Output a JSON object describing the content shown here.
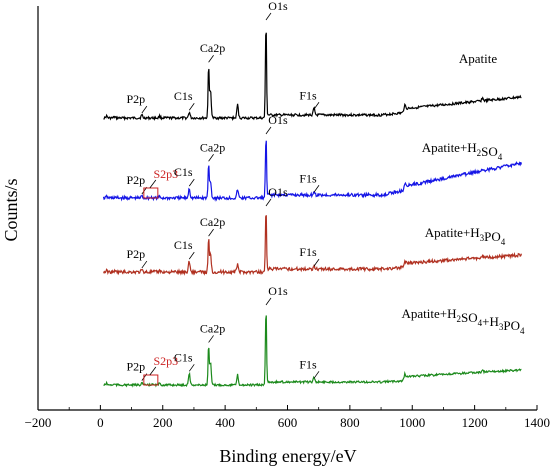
{
  "chart_data": {
    "type": "line",
    "xlabel": "Binding energy/eV",
    "ylabel": "Counts/s",
    "xlim": [
      -200,
      1400
    ],
    "x_ticks": [
      "−200",
      "0",
      "200",
      "400",
      "600",
      "800",
      "1000",
      "1200",
      "1400"
    ],
    "y_ticks_shown": false,
    "grid": false,
    "series": [
      {
        "name": "Apatite",
        "color": "#000000",
        "peaks": [
          {
            "x": 20,
            "h": 2
          },
          {
            "x": 45,
            "h": 1
          },
          {
            "x": 133,
            "h": 3
          },
          {
            "x": 190,
            "h": 2
          },
          {
            "x": 285,
            "h": 6
          },
          {
            "x": 347,
            "h": 56
          },
          {
            "x": 353,
            "h": 29
          },
          {
            "x": 440,
            "h": 14
          },
          {
            "x": 531,
            "h": 100
          },
          {
            "x": 685,
            "h": 7
          },
          {
            "x": 975,
            "h": 6
          },
          {
            "x": 1225,
            "h": 3
          }
        ],
        "labels": [
          {
            "text": "P2p",
            "x": 133
          },
          {
            "text": "C1s",
            "x": 285
          },
          {
            "text": "Ca2p",
            "x": 347
          },
          {
            "text": "O1s",
            "x": 531
          },
          {
            "text": "F1s",
            "x": 685
          }
        ]
      },
      {
        "name": "Apatite+H2SO4",
        "color": "#1414e6",
        "peaks": [
          {
            "x": 20,
            "h": 2
          },
          {
            "x": 45,
            "h": 1
          },
          {
            "x": 133,
            "h": 3
          },
          {
            "x": 165,
            "h": 1
          },
          {
            "x": 190,
            "h": 2
          },
          {
            "x": 285,
            "h": 16
          },
          {
            "x": 347,
            "h": 56
          },
          {
            "x": 353,
            "h": 29
          },
          {
            "x": 440,
            "h": 14
          },
          {
            "x": 531,
            "h": 100
          },
          {
            "x": 685,
            "h": 6
          },
          {
            "x": 975,
            "h": 6
          },
          {
            "x": 1225,
            "h": 3
          }
        ],
        "labels": [
          {
            "text": "P2p",
            "x": 133
          },
          {
            "text": "S2p3",
            "x": 165,
            "highlight": true
          },
          {
            "text": "C1s",
            "x": 285
          },
          {
            "text": "Ca2p",
            "x": 347
          },
          {
            "text": "O1s",
            "x": 531
          },
          {
            "text": "F1s",
            "x": 685
          }
        ]
      },
      {
        "name": "Apatite+H3PO4",
        "color": "#b03020",
        "peaks": [
          {
            "x": 20,
            "h": 2
          },
          {
            "x": 45,
            "h": 1
          },
          {
            "x": 133,
            "h": 3
          },
          {
            "x": 190,
            "h": 2
          },
          {
            "x": 285,
            "h": 17
          },
          {
            "x": 347,
            "h": 53
          },
          {
            "x": 353,
            "h": 29
          },
          {
            "x": 440,
            "h": 13
          },
          {
            "x": 531,
            "h": 100
          },
          {
            "x": 685,
            "h": 6
          },
          {
            "x": 975,
            "h": 6
          },
          {
            "x": 1225,
            "h": 3
          }
        ],
        "labels": [
          {
            "text": "P2p",
            "x": 133
          },
          {
            "text": "C1s",
            "x": 285
          },
          {
            "text": "Ca2p",
            "x": 347
          },
          {
            "text": "O1s",
            "x": 531
          },
          {
            "text": "F1s",
            "x": 685
          }
        ]
      },
      {
        "name": "Apatite+H2SO4+H3PO4",
        "color": "#1c8a1c",
        "peaks": [
          {
            "x": 20,
            "h": 2
          },
          {
            "x": 45,
            "h": 1
          },
          {
            "x": 133,
            "h": 3
          },
          {
            "x": 165,
            "h": 1
          },
          {
            "x": 190,
            "h": 2
          },
          {
            "x": 285,
            "h": 15
          },
          {
            "x": 347,
            "h": 52
          },
          {
            "x": 353,
            "h": 29
          },
          {
            "x": 440,
            "h": 13
          },
          {
            "x": 531,
            "h": 100
          },
          {
            "x": 685,
            "h": 6
          },
          {
            "x": 975,
            "h": 6
          },
          {
            "x": 1225,
            "h": 3
          }
        ],
        "labels": [
          {
            "text": "P2p",
            "x": 133
          },
          {
            "text": "S2p3",
            "x": 165,
            "highlight": true
          },
          {
            "text": "C1s",
            "x": 285
          },
          {
            "text": "Ca2p",
            "x": 347
          },
          {
            "text": "O1s",
            "x": 531
          },
          {
            "text": "F1s",
            "x": 685
          }
        ]
      }
    ]
  },
  "styles": {
    "axis_color": "#000000",
    "highlight_color": "#cc2222",
    "background": "#ffffff"
  }
}
